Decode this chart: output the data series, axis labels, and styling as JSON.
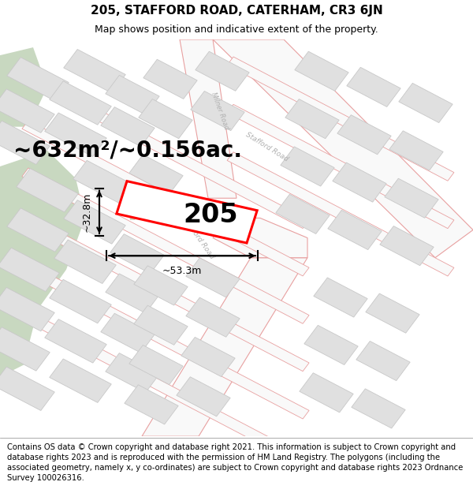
{
  "title": "205, STAFFORD ROAD, CATERHAM, CR3 6JN",
  "subtitle": "Map shows position and indicative extent of the property.",
  "footer": "Contains OS data © Crown copyright and database right 2021. This information is subject to Crown copyright and database rights 2023 and is reproduced with the permission of HM Land Registry. The polygons (including the associated geometry, namely x, y co-ordinates) are subject to Crown copyright and database rights 2023 Ordnance Survey 100026316.",
  "area_label": "~632m²/~0.156ac.",
  "width_label": "~53.3m",
  "height_label": "~32.8m",
  "number_label": "205",
  "map_bg": "#f9f9f9",
  "road_line_color": "#e8a0a0",
  "block_fill": "#e0e0e0",
  "block_edge": "#c8c8c8",
  "green_fill": "#c8d8c0",
  "green_edge": "#c8d8c0",
  "highlight_stroke": "#ff0000",
  "highlight_fill": "#ffffff",
  "road_label_color": "#b0b0b0",
  "title_fontsize": 11,
  "subtitle_fontsize": 9,
  "footer_fontsize": 7.2,
  "area_fontsize": 20,
  "number_fontsize": 24,
  "dim_fontsize": 9
}
